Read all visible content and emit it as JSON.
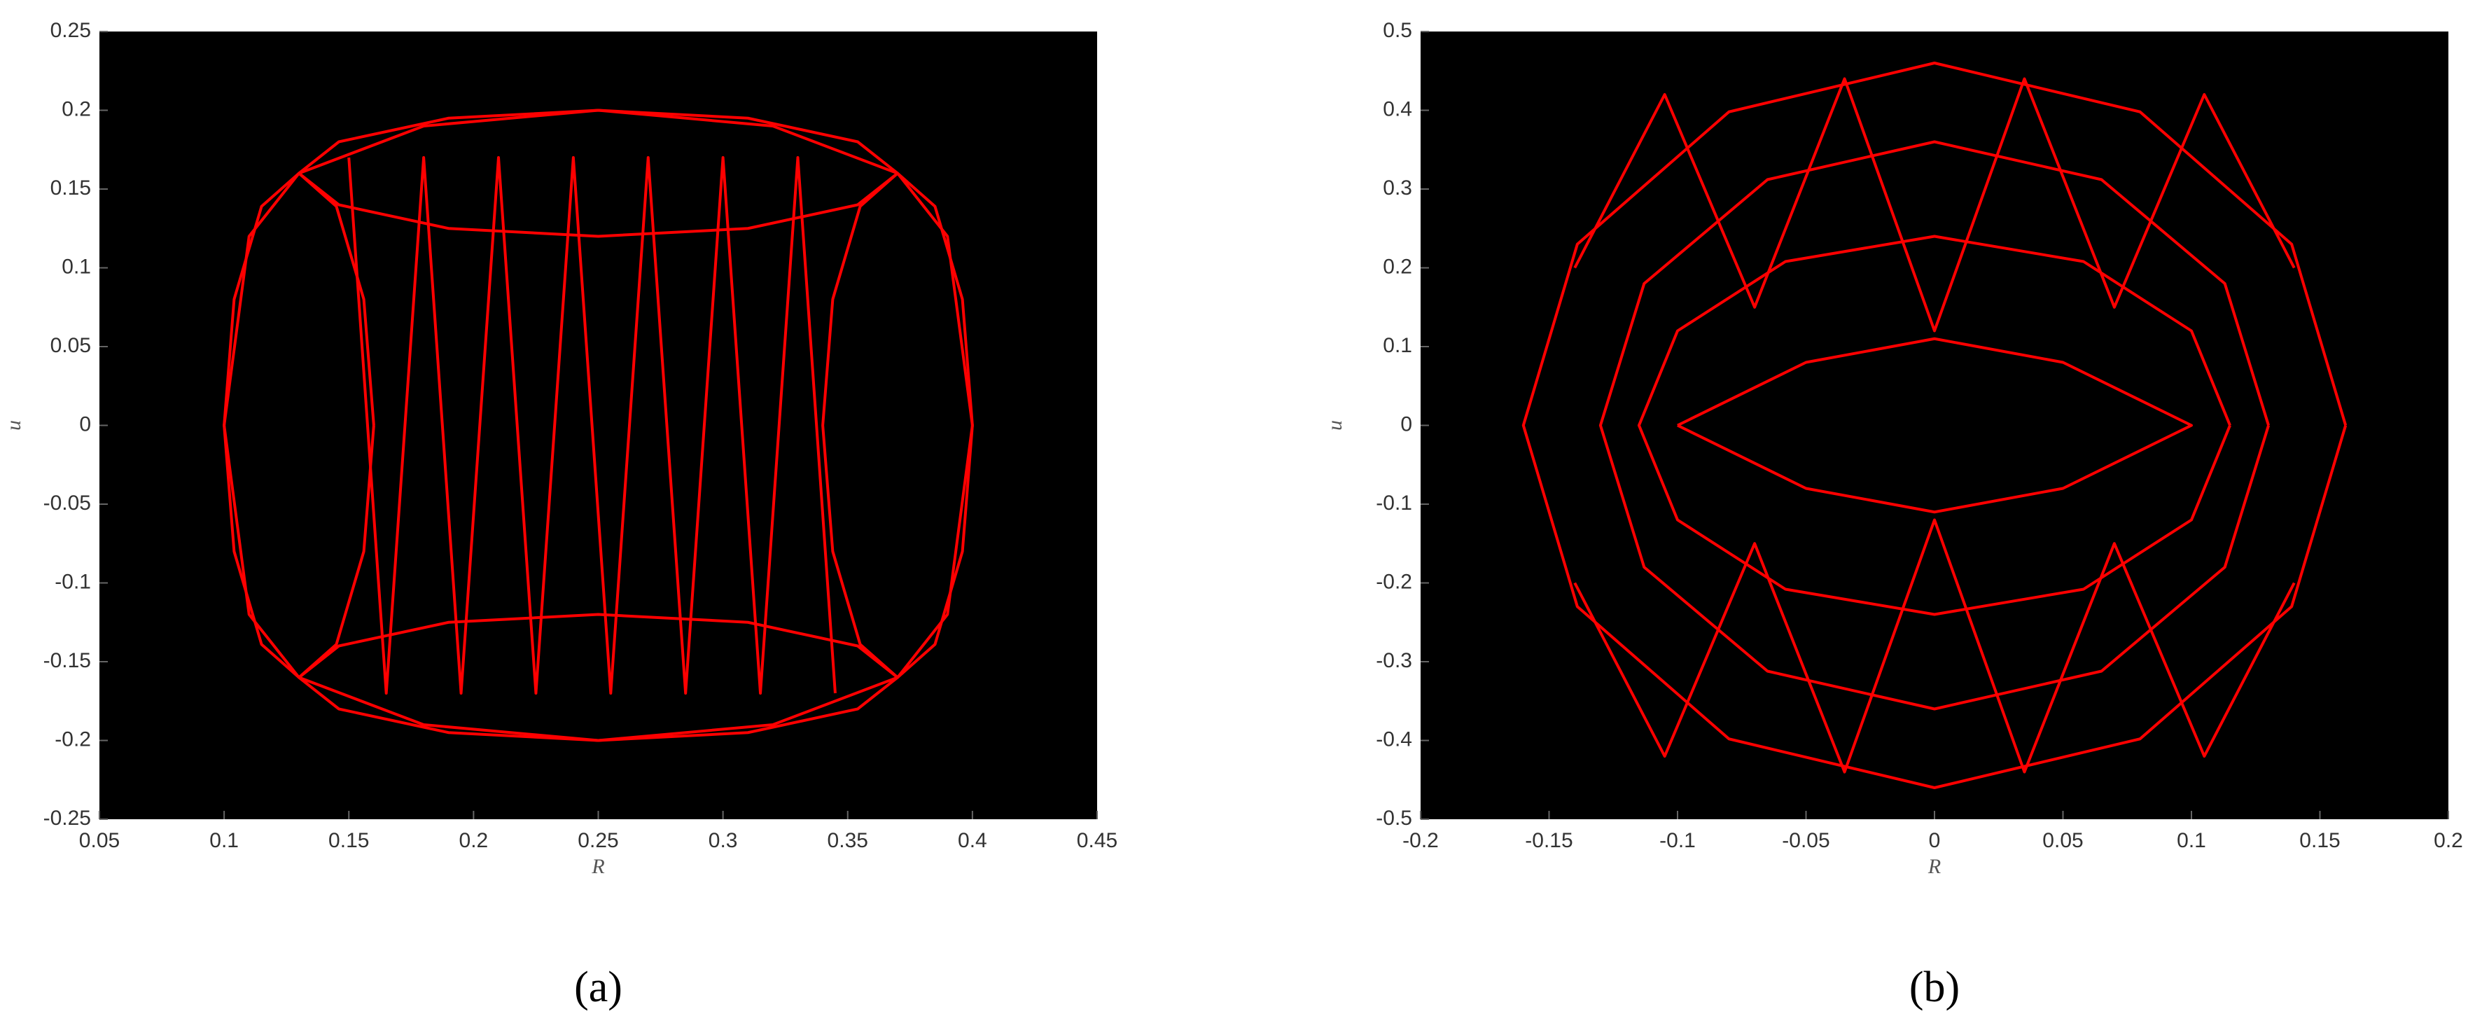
{
  "chart_data": [
    {
      "type": "line",
      "panel_label": "(a)",
      "x_label": "R",
      "y_label": "u",
      "xlim": [
        0.05,
        0.45
      ],
      "ylim": [
        -0.25,
        0.25
      ],
      "xticks": [
        0.05,
        0.1,
        0.15,
        0.2,
        0.25,
        0.3,
        0.35,
        0.4,
        0.45
      ],
      "yticks": [
        -0.25,
        -0.2,
        -0.15,
        -0.1,
        -0.05,
        0,
        0.05,
        0.1,
        0.15,
        0.2,
        0.25
      ],
      "background": "#000000",
      "series": [
        {
          "color": "#ff0000",
          "x": [
            0.1,
            0.11,
            0.13,
            0.18,
            0.25,
            0.32,
            0.37,
            0.39,
            0.4,
            0.39,
            0.37,
            0.32,
            0.25,
            0.18,
            0.13,
            0.11,
            0.1
          ],
          "values": [
            0,
            0.12,
            0.16,
            0.19,
            0.2,
            0.19,
            0.16,
            0.12,
            0,
            -0.12,
            -0.16,
            -0.19,
            -0.2,
            -0.19,
            -0.16,
            -0.12,
            0
          ]
        },
        {
          "color": "#ff0000",
          "x": [
            0.16,
            0.156,
            0.145,
            0.13,
            0.115,
            0.104,
            0.1,
            0.104,
            0.115,
            0.13,
            0.145,
            0.156,
            0.16
          ],
          "values": [
            0,
            0.08,
            0.139,
            0.16,
            0.139,
            0.08,
            0,
            -0.08,
            -0.139,
            -0.16,
            -0.139,
            -0.08,
            0
          ]
        },
        {
          "color": "#ff0000",
          "x": [
            0.4,
            0.396,
            0.385,
            0.37,
            0.355,
            0.344,
            0.34,
            0.344,
            0.355,
            0.37,
            0.385,
            0.396,
            0.4
          ],
          "values": [
            0,
            0.08,
            0.139,
            0.16,
            0.139,
            0.08,
            0,
            -0.08,
            -0.139,
            -0.16,
            -0.139,
            -0.08,
            0
          ]
        },
        {
          "color": "#ff0000",
          "x": [
            0.37,
            0.354,
            0.31,
            0.25,
            0.19,
            0.146,
            0.13,
            0.146,
            0.19,
            0.25,
            0.31,
            0.354,
            0.37
          ],
          "values": [
            0.16,
            0.18,
            0.195,
            0.2,
            0.195,
            0.18,
            0.16,
            0.14,
            0.125,
            0.12,
            0.125,
            0.14,
            0.16
          ]
        },
        {
          "color": "#ff0000",
          "x": [
            0.37,
            0.354,
            0.31,
            0.25,
            0.19,
            0.146,
            0.13,
            0.146,
            0.19,
            0.25,
            0.31,
            0.354,
            0.37
          ],
          "values": [
            -0.16,
            -0.14,
            -0.125,
            -0.12,
            -0.125,
            -0.14,
            -0.16,
            -0.18,
            -0.195,
            -0.2,
            -0.195,
            -0.18,
            -0.16
          ]
        },
        {
          "color": "#ff0000",
          "x": [
            0.15,
            0.165,
            0.18,
            0.195,
            0.21,
            0.225,
            0.24,
            0.255,
            0.27,
            0.285,
            0.3,
            0.315,
            0.33,
            0.345
          ],
          "values": [
            0.17,
            -0.17,
            0.17,
            -0.17,
            0.17,
            -0.17,
            0.17,
            -0.17,
            0.17,
            -0.17,
            0.17,
            -0.17,
            0.17,
            -0.17
          ]
        }
      ]
    },
    {
      "type": "line",
      "panel_label": "(b)",
      "x_label": "R",
      "y_label": "u",
      "xlim": [
        -0.2,
        0.2
      ],
      "ylim": [
        -0.5,
        0.5
      ],
      "xticks": [
        -0.2,
        -0.15,
        -0.1,
        -0.05,
        0,
        0.05,
        0.1,
        0.15,
        0.2
      ],
      "yticks": [
        -0.5,
        -0.4,
        -0.3,
        -0.2,
        -0.1,
        0,
        0.1,
        0.2,
        0.3,
        0.4,
        0.5
      ],
      "background": "#000000",
      "series": [
        {
          "color": "#ff0000",
          "x": [
            0.16,
            0.139,
            0.08,
            0,
            -0.08,
            -0.139,
            -0.16,
            -0.139,
            -0.08,
            0,
            0.08,
            0.139,
            0.16
          ],
          "values": [
            0,
            0.23,
            0.398,
            0.46,
            0.398,
            0.23,
            0,
            -0.23,
            -0.398,
            -0.46,
            -0.398,
            -0.23,
            0
          ]
        },
        {
          "color": "#ff0000",
          "x": [
            0.13,
            0.113,
            0.065,
            0,
            -0.065,
            -0.113,
            -0.13,
            -0.113,
            -0.065,
            0,
            0.065,
            0.113,
            0.13
          ],
          "values": [
            0,
            0.18,
            0.312,
            0.36,
            0.312,
            0.18,
            0,
            -0.18,
            -0.312,
            -0.36,
            -0.312,
            -0.18,
            0
          ]
        },
        {
          "color": "#ff0000",
          "x": [
            0.115,
            0.1,
            0.058,
            0,
            -0.058,
            -0.1,
            -0.115,
            -0.1,
            -0.058,
            0,
            0.058,
            0.1,
            0.115
          ],
          "values": [
            0,
            0.12,
            0.208,
            0.24,
            0.208,
            0.12,
            0,
            -0.12,
            -0.208,
            -0.24,
            -0.208,
            -0.12,
            0
          ]
        },
        {
          "color": "#ff0000",
          "x": [
            -0.1,
            -0.05,
            0,
            0.05,
            0.1,
            0.05,
            0,
            -0.05,
            -0.1
          ],
          "values": [
            0,
            0.08,
            0.11,
            0.08,
            0,
            -0.08,
            -0.11,
            -0.08,
            0
          ]
        },
        {
          "color": "#ff0000",
          "x": [
            -0.14,
            -0.105,
            -0.07,
            -0.035,
            0,
            0.035,
            0.07,
            0.105,
            0.14
          ],
          "values": [
            0.2,
            0.42,
            0.15,
            0.44,
            0.12,
            0.44,
            0.15,
            0.42,
            0.2
          ]
        },
        {
          "color": "#ff0000",
          "x": [
            -0.14,
            -0.105,
            -0.07,
            -0.035,
            0,
            0.035,
            0.07,
            0.105,
            0.14
          ],
          "values": [
            -0.2,
            -0.42,
            -0.15,
            -0.44,
            -0.12,
            -0.44,
            -0.15,
            -0.42,
            -0.2
          ]
        }
      ]
    }
  ]
}
